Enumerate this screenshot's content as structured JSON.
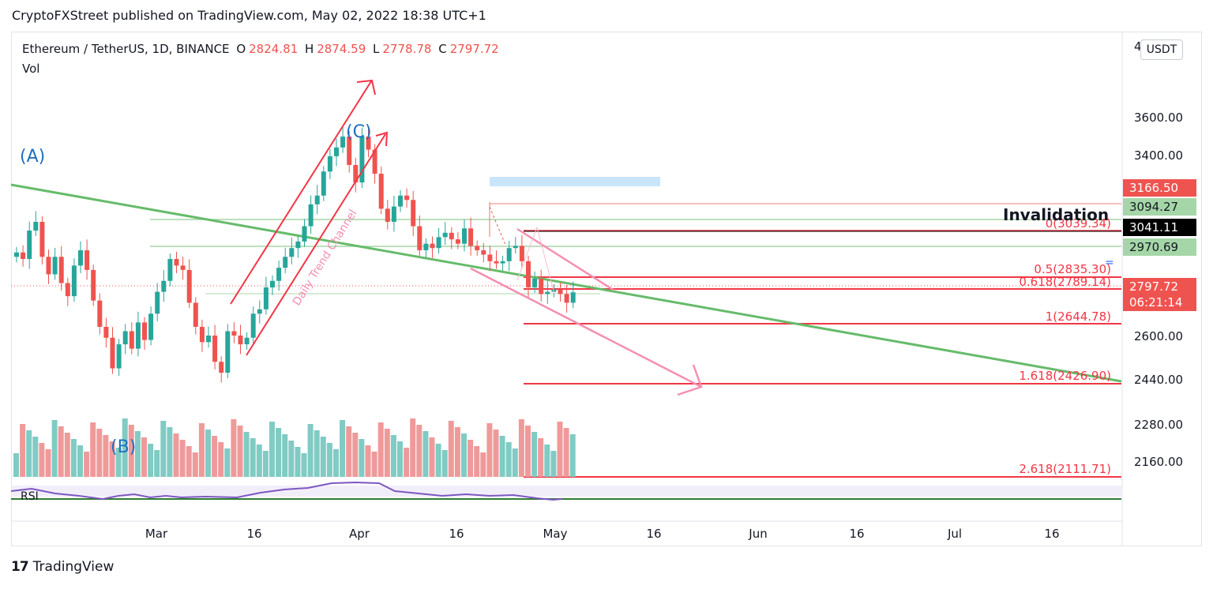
{
  "header": {
    "publisher_line": "CryptoFXStreet published on TradingView.com, May 02, 2022 18:38 UTC+1"
  },
  "legend": {
    "symbol": "Ethereum / TetherUS, 1D, BINANCE",
    "open_label": "O",
    "open": "2824.81",
    "high_label": "H",
    "high": "2874.59",
    "low_label": "L",
    "low": "2778.78",
    "close_label": "C",
    "close": "2797.72",
    "vol_label": "Vol"
  },
  "currency_button": "USDT",
  "price_tags": {
    "t1": "3166.50",
    "t2": "3094.27",
    "t3": "3041.11",
    "t4": "2970.69",
    "last_price": "2797.72",
    "countdown": "06:21:14"
  },
  "annotations": {
    "invalidation": "Invalidation",
    "wave_a": "(A)",
    "wave_b": "(B)",
    "wave_c": "(C)",
    "channel": "Daily Trend Channel",
    "rsi_label": "RSI"
  },
  "fib_levels": [
    {
      "label": "0(3039.34)",
      "value": 3039.34
    },
    {
      "label": "0.5(2835.30)",
      "value": 2835.3
    },
    {
      "label": "0.618(2789.14)",
      "value": 2789.14
    },
    {
      "label": "1(2644.78)",
      "value": 2644.78
    },
    {
      "label": "1.618(2426.90)",
      "value": 2426.9
    },
    {
      "label": "2.618(2111.71)",
      "value": 2111.71
    }
  ],
  "footer": {
    "logo_mark": "17",
    "brand": "TradingView"
  },
  "colors": {
    "up": "#26a69a",
    "down": "#ef5350",
    "trend": "#66bb6a",
    "fib": "#f23645",
    "rsi": "#7e57c2"
  },
  "chart_data": {
    "type": "candlestick",
    "title": "Ethereum / TetherUS, 1D, BINANCE",
    "y_ticks": [
      "4",
      "3600.00",
      "3400.00",
      "2600.00",
      "2440.00",
      "2280.00",
      "2160.00"
    ],
    "x_ticks": [
      "Mar",
      "16",
      "Apr",
      "16",
      "May",
      "16",
      "Jun",
      "16",
      "Jul",
      "16"
    ],
    "closes": [
      2980,
      2950,
      3080,
      3120,
      2960,
      2880,
      2960,
      2840,
      2780,
      2920,
      2990,
      2900,
      2760,
      2640,
      2590,
      2450,
      2560,
      2620,
      2540,
      2660,
      2580,
      2700,
      2800,
      2850,
      2950,
      2920,
      2900,
      2750,
      2640,
      2570,
      2600,
      2480,
      2430,
      2620,
      2600,
      2560,
      2590,
      2700,
      2720,
      2820,
      2850,
      2910,
      2960,
      3000,
      3030,
      3100,
      3200,
      3240,
      3350,
      3420,
      3460,
      3510,
      3380,
      3300,
      3510,
      3450,
      3340,
      3180,
      3120,
      3190,
      3240,
      3220,
      3100,
      2990,
      3020,
      3000,
      3050,
      3070,
      3040,
      3020,
      3090,
      3010,
      2990,
      2970,
      2940,
      2930,
      2940,
      3000,
      3010,
      2940,
      2820,
      2860,
      2790,
      2800,
      2810,
      2790,
      2750,
      2797.72
    ],
    "volume_style": "histogram",
    "rsi": "oscillator panel"
  }
}
